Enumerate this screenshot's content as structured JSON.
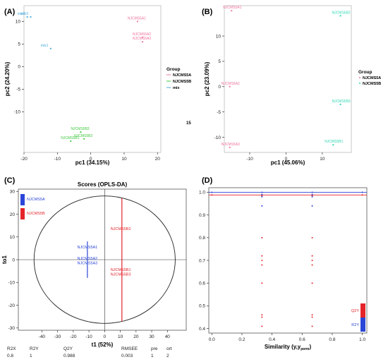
{
  "colors": {
    "a": "#f0739a",
    "b": "#3cc83c",
    "mix": "#46aadc",
    "teal": "#2fd6b4",
    "red": "#e5232a",
    "blue": "#2a46d8",
    "axis": "#333333"
  },
  "chart_data": [
    {
      "type": "scatter",
      "panel_label": "(A)",
      "xlabel": "pc1 (34.15%)",
      "ylabel": "pc2 (24.20%)",
      "xlim": [
        -20,
        21
      ],
      "ylim": [
        -19,
        13.5
      ],
      "xticks": [
        -20,
        -10,
        0,
        10,
        20
      ],
      "yticks": [
        -10,
        -5,
        0,
        5,
        10
      ],
      "legend_title": "Group",
      "legend_position": "right",
      "stray_label": "15",
      "series": [
        {
          "name": "NJCMS5A",
          "color_key": "a",
          "points": [
            {
              "label": "NJCMS5A1",
              "x": 14,
              "y": 10
            },
            {
              "label": "NJCMS5A2",
              "x": 15.5,
              "y": 6.5
            },
            {
              "label": "NJCMS5A3",
              "x": 15.5,
              "y": 5.5
            }
          ]
        },
        {
          "name": "NJCMS5B",
          "color_key": "b",
          "points": [
            {
              "label": "NJCMS5B3",
              "x": -3,
              "y": -14.5
            },
            {
              "label": "NJCMS5B1",
              "x": -6,
              "y": -16.5
            },
            {
              "label": "NJCMS5B2",
              "x": -2,
              "y": -16
            }
          ]
        },
        {
          "name": "mix",
          "color_key": "mix",
          "points": [
            {
              "label": "mix2",
              "x": -19,
              "y": 11
            },
            {
              "label": "mix3",
              "x": -18,
              "y": 11
            },
            {
              "label": "mix1",
              "x": -12,
              "y": 4
            }
          ]
        }
      ]
    },
    {
      "type": "scatter",
      "panel_label": "(B)",
      "xlabel": "pc1 (45.06%)",
      "ylabel": "pc2 (23.09%)",
      "xlim": [
        -17,
        18
      ],
      "ylim": [
        -13,
        16
      ],
      "xticks": [
        -10,
        0,
        10
      ],
      "yticks": [
        -10,
        -5,
        0,
        5,
        10
      ],
      "legend_title": "Group",
      "legend_position": "right",
      "series": [
        {
          "name": "NJCMS5A",
          "color_key": "a",
          "points": [
            {
              "label": "NJCMS5A1",
              "x": -15,
              "y": 15
            },
            {
              "label": "NJCMS5A2",
              "x": -15.5,
              "y": 0
            },
            {
              "label": "NJCMS5A3",
              "x": -15.5,
              "y": -12
            }
          ]
        },
        {
          "name": "NJCMS5B",
          "color_key": "teal",
          "points": [
            {
              "label": "NJCMS5B2",
              "x": 15,
              "y": 14
            },
            {
              "label": "NJCMS5B3",
              "x": 15,
              "y": -3.5
            },
            {
              "label": "NJCMS5B1",
              "x": 13,
              "y": -11.5
            }
          ]
        }
      ]
    },
    {
      "type": "scatter",
      "panel_label": "(C)",
      "title": "Scores (OPLS-DA)",
      "xlabel": "t1 (52%)",
      "ylabel": "to1",
      "xlim": [
        -55,
        52
      ],
      "ylim": [
        -31,
        31
      ],
      "xticks": [
        -40,
        -30,
        -20,
        -10,
        0,
        10,
        20,
        30,
        40
      ],
      "yticks": [
        -30,
        -20,
        -10,
        0,
        10,
        20,
        30
      ],
      "ellipse": {
        "rx": 45,
        "ry": 28
      },
      "legend_position": "top-left",
      "series": [
        {
          "name": "NJCMS5A",
          "color_key": "blue",
          "vline": {
            "x": -11,
            "y1": -8,
            "y2": 8
          },
          "labels": [
            {
              "text": "NJCMS5A1",
              "x": -11,
              "y": 5
            },
            {
              "text": "NJCMS5A2",
              "x": -11,
              "y": 0
            },
            {
              "text": "NJCMS5A3",
              "x": -11,
              "y": -2
            }
          ]
        },
        {
          "name": "NJCMS5B",
          "color_key": "red",
          "vline": {
            "x": 11,
            "y1": -27,
            "y2": 27
          },
          "labels": [
            {
              "text": "NJCMS5B2",
              "x": 11,
              "y": 13
            },
            {
              "text": "NJCMS5B1",
              "x": 11,
              "y": -5
            },
            {
              "text": "NJCMS5B3",
              "x": 11,
              "y": -7
            }
          ]
        }
      ],
      "stats_table": {
        "headers": [
          "R2X",
          "R2Y",
          "Q2Y",
          "RMSEE",
          "pre",
          "ort"
        ],
        "values": [
          "0.8",
          "1",
          "0.988",
          "0.003",
          "1",
          "2"
        ]
      }
    },
    {
      "type": "scatter",
      "panel_label": "(D)",
      "xlabel": "Similarity (y,y",
      "xlabel_sub": "perm",
      "xlabel_end": ")",
      "xlim": [
        -0.02,
        1.03
      ],
      "ylim": [
        0.38,
        1.02
      ],
      "xticks": [
        "0.0",
        "0.2",
        "0.4",
        "0.6",
        "0.8",
        "1.0"
      ],
      "yticks": [
        "0.4",
        "0.5",
        "0.6",
        "0.7",
        "0.8",
        "0.9",
        "1.0"
      ],
      "legend_position": "bottom-right",
      "hlines": [
        {
          "y": 1.0,
          "color_key": "blue"
        },
        {
          "y": 0.988,
          "color_key": "red"
        }
      ],
      "series": [
        {
          "name": "R2Y",
          "color_key": "blue",
          "points": [
            {
              "x": 0.0,
              "y": 1.0
            },
            {
              "x": 0.333,
              "y": 1.0
            },
            {
              "x": 0.333,
              "y": 0.99
            },
            {
              "x": 0.333,
              "y": 0.98
            },
            {
              "x": 0.333,
              "y": 0.94
            },
            {
              "x": 0.667,
              "y": 1.0
            },
            {
              "x": 0.667,
              "y": 0.99
            },
            {
              "x": 0.667,
              "y": 0.98
            },
            {
              "x": 0.667,
              "y": 0.94
            },
            {
              "x": 1.0,
              "y": 1.0
            }
          ]
        },
        {
          "name": "Q2Y",
          "color_key": "red",
          "points": [
            {
              "x": 0.0,
              "y": 0.988
            },
            {
              "x": 0.333,
              "y": 0.985
            },
            {
              "x": 0.333,
              "y": 0.8
            },
            {
              "x": 0.333,
              "y": 0.72
            },
            {
              "x": 0.333,
              "y": 0.7
            },
            {
              "x": 0.333,
              "y": 0.68
            },
            {
              "x": 0.333,
              "y": 0.6
            },
            {
              "x": 0.333,
              "y": 0.46
            },
            {
              "x": 0.333,
              "y": 0.45
            },
            {
              "x": 0.333,
              "y": 0.41
            },
            {
              "x": 0.667,
              "y": 0.985
            },
            {
              "x": 0.667,
              "y": 0.8
            },
            {
              "x": 0.667,
              "y": 0.72
            },
            {
              "x": 0.667,
              "y": 0.7
            },
            {
              "x": 0.667,
              "y": 0.68
            },
            {
              "x": 0.667,
              "y": 0.6
            },
            {
              "x": 0.667,
              "y": 0.46
            },
            {
              "x": 0.667,
              "y": 0.45
            },
            {
              "x": 0.667,
              "y": 0.41
            },
            {
              "x": 1.0,
              "y": 0.988
            }
          ]
        }
      ]
    }
  ]
}
